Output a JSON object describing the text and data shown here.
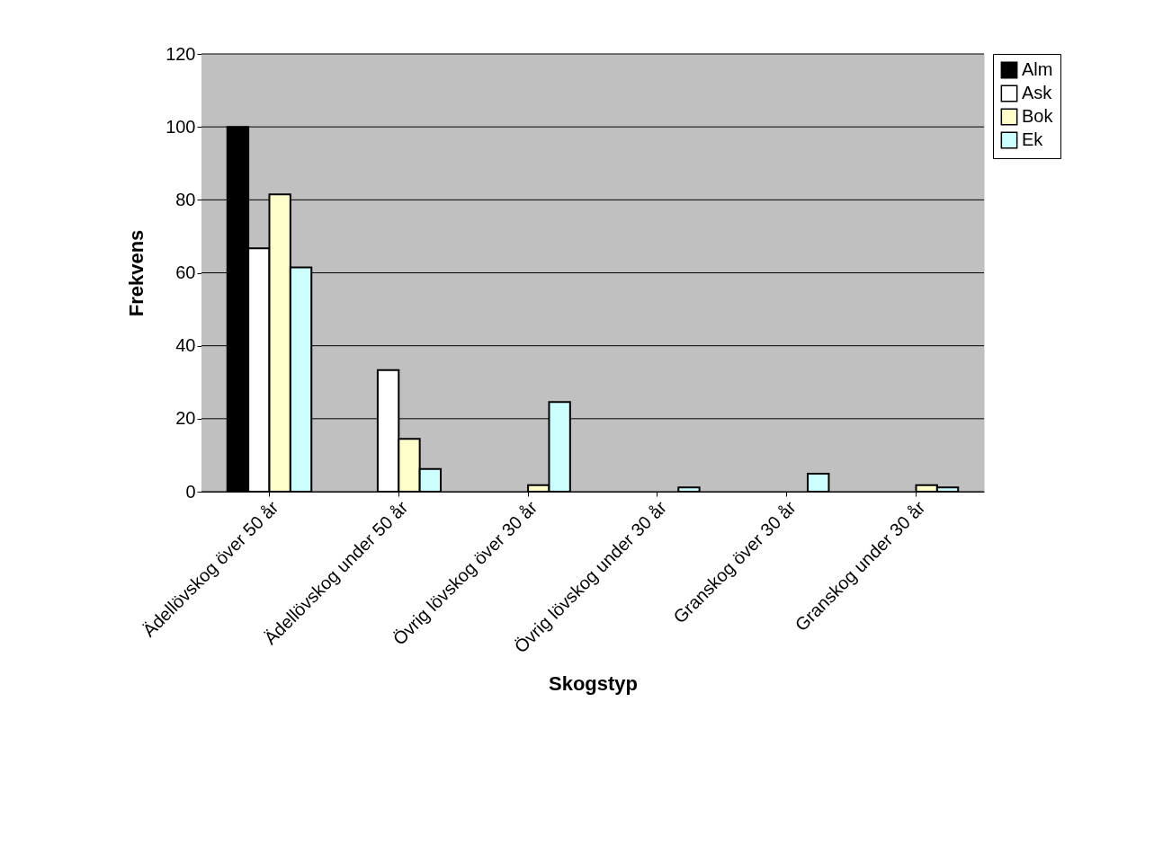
{
  "chart_data": {
    "type": "bar",
    "xlabel": "Skogstyp",
    "ylabel": "Frekvens",
    "categories": [
      "Ädellövskog över 50 år",
      "Ädellövskog under 50 år",
      "Övrig lövskog över 30 år",
      "Övrig lövskog under 30 år",
      "Granskog över 30 år",
      "Granskog under 30 år"
    ],
    "series": [
      {
        "name": "Alm",
        "color": "#000000",
        "values": [
          100,
          0,
          0,
          0,
          0,
          0
        ]
      },
      {
        "name": "Ask",
        "color": "#ffffff",
        "values": [
          66.7,
          33.3,
          0,
          0,
          0,
          0
        ]
      },
      {
        "name": "Bok",
        "color": "#ffffcc",
        "values": [
          81.5,
          14.5,
          1.8,
          0,
          0,
          1.8
        ]
      },
      {
        "name": "Ek",
        "color": "#ccffff",
        "values": [
          61.5,
          6.2,
          24.6,
          1.2,
          4.9,
          1.2
        ]
      }
    ],
    "ylim": [
      0,
      120
    ],
    "yticks": [
      0,
      20,
      40,
      60,
      80,
      100,
      120
    ],
    "grid": "y",
    "legend": "right"
  }
}
